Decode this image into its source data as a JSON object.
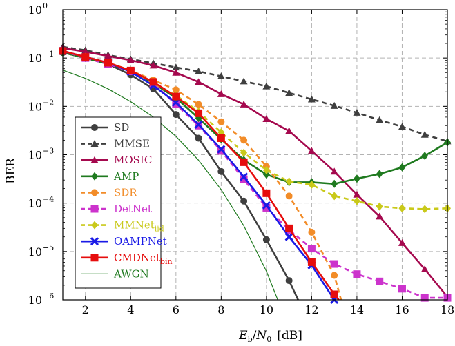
{
  "chart_data": {
    "type": "line",
    "title": "",
    "xlabel": "E_b/N_0 [dB]",
    "xlabel_parts": {
      "e": "E",
      "b": "b",
      "slash": "/",
      "n": "N",
      "zero": "0",
      "unit": "[dB]"
    },
    "ylabel": "BER",
    "xlim": [
      1,
      18
    ],
    "ylim": [
      1e-06,
      1
    ],
    "yscale": "log",
    "grid": true,
    "legend_position": "lower-left",
    "x_ticks": [
      2,
      4,
      6,
      8,
      10,
      12,
      14,
      16,
      18
    ],
    "x_tick_labels": [
      "2",
      "4",
      "6",
      "8",
      "10",
      "12",
      "14",
      "16",
      "18"
    ],
    "y_ticks": [
      0,
      -1,
      -2,
      -3,
      -4,
      -5,
      -6
    ],
    "y_tick_labels": [
      {
        "base": "10",
        "exp": "0"
      },
      {
        "base": "10",
        "exp": "−1"
      },
      {
        "base": "10",
        "exp": "−2"
      },
      {
        "base": "10",
        "exp": "−3"
      },
      {
        "base": "10",
        "exp": "−4"
      },
      {
        "base": "10",
        "exp": "−5"
      },
      {
        "base": "10",
        "exp": "−6"
      }
    ],
    "series": [
      {
        "name": "SD",
        "sub": "",
        "color": "#3f3f3f",
        "dash": "solid",
        "marker": "circle",
        "x": [
          1,
          2,
          3,
          4,
          5,
          6,
          7,
          8,
          9,
          10,
          11,
          11.4
        ],
        "y": [
          0.13,
          0.1,
          0.075,
          0.045,
          0.023,
          0.0068,
          0.0022,
          0.00045,
          0.00011,
          1.75e-05,
          2.5e-06,
          1e-06
        ]
      },
      {
        "name": "MMSE",
        "sub": "",
        "color": "#3f3f3f",
        "dash": "dashed",
        "marker": "triangle",
        "x": [
          1,
          2,
          3,
          4,
          5,
          6,
          7,
          8,
          9,
          10,
          11,
          12,
          13,
          14,
          15,
          16,
          17,
          18
        ],
        "y": [
          0.17,
          0.145,
          0.115,
          0.095,
          0.078,
          0.064,
          0.053,
          0.042,
          0.033,
          0.026,
          0.019,
          0.014,
          0.0103,
          0.0074,
          0.0052,
          0.0038,
          0.0026,
          0.0019
        ]
      },
      {
        "name": "MOSIC",
        "sub": "",
        "color": "#a5094e",
        "dash": "solid",
        "marker": "triangle",
        "x": [
          1,
          2,
          3,
          4,
          5,
          6,
          7,
          8,
          9,
          10,
          11,
          12,
          13,
          14,
          15,
          16,
          17,
          18
        ],
        "y": [
          0.16,
          0.135,
          0.11,
          0.09,
          0.07,
          0.05,
          0.032,
          0.018,
          0.011,
          0.0055,
          0.0031,
          0.0012,
          0.00045,
          0.00015,
          5.3e-05,
          1.5e-05,
          4.3e-06,
          1.15e-06
        ]
      },
      {
        "name": "AMP",
        "sub": "",
        "color": "#1f7a1f",
        "dash": "solid",
        "marker": "diamond",
        "x": [
          1,
          2,
          3,
          4,
          5,
          6,
          7,
          8,
          9,
          10,
          11,
          12,
          13,
          14,
          15,
          16,
          17,
          18
        ],
        "y": [
          0.13,
          0.1,
          0.075,
          0.055,
          0.03,
          0.015,
          0.0057,
          0.0021,
          0.00078,
          0.00039,
          0.00027,
          0.00027,
          0.00025,
          0.00032,
          0.0004,
          0.00055,
          0.00095,
          0.0018
        ]
      },
      {
        "name": "SDR",
        "sub": "",
        "color": "#f28c28",
        "dash": "dashed",
        "marker": "circle",
        "x": [
          1,
          2,
          3,
          4,
          5,
          6,
          7,
          8,
          9,
          10,
          11,
          12,
          13,
          13.3
        ],
        "y": [
          0.14,
          0.105,
          0.08,
          0.055,
          0.035,
          0.022,
          0.011,
          0.0048,
          0.002,
          0.00057,
          0.00014,
          2.5e-05,
          3.2e-06,
          1e-06
        ]
      },
      {
        "name": "DetNet",
        "sub": "",
        "color": "#cc33cc",
        "dash": "dashed",
        "marker": "square",
        "x": [
          1,
          2,
          3,
          4,
          5,
          6,
          7,
          8,
          9,
          10,
          11,
          12,
          13,
          14,
          15,
          16,
          17,
          18
        ],
        "y": [
          0.14,
          0.1,
          0.075,
          0.053,
          0.03,
          0.011,
          0.004,
          0.0012,
          0.00031,
          8e-05,
          2.8e-05,
          1.15e-05,
          5.5e-06,
          3.4e-06,
          2.4e-06,
          1.7e-06,
          1.1e-06,
          1.1e-06
        ]
      },
      {
        "name": "MMNet",
        "sub": "iid",
        "color": "#c9c91a",
        "dash": "dashed",
        "marker": "diamond",
        "x": [
          1,
          2,
          3,
          4,
          5,
          6,
          7,
          8,
          9,
          10,
          11,
          12,
          13,
          14,
          15,
          16,
          17,
          18
        ],
        "y": [
          0.14,
          0.105,
          0.08,
          0.055,
          0.03,
          0.017,
          0.0078,
          0.0029,
          0.0011,
          0.00048,
          0.00028,
          0.00024,
          0.00014,
          0.00011,
          8.5e-05,
          7.8e-05,
          7.5e-05,
          7.8e-05
        ]
      },
      {
        "name": "OAMPNet",
        "sub": "",
        "color": "#1a1ae6",
        "dash": "solid",
        "marker": "x",
        "x": [
          1,
          2,
          3,
          4,
          5,
          6,
          7,
          8,
          9,
          10,
          11,
          12,
          13
        ],
        "y": [
          0.14,
          0.105,
          0.08,
          0.052,
          0.027,
          0.012,
          0.0042,
          0.0013,
          0.00035,
          9e-05,
          2e-05,
          5.2e-06,
          1e-06
        ]
      },
      {
        "name": "CMDNet",
        "sub": "bin",
        "color": "#e60d0d",
        "dash": "solid",
        "marker": "square",
        "x": [
          1,
          2,
          3,
          4,
          5,
          6,
          7,
          8,
          9,
          10,
          11,
          12,
          13,
          13.2
        ],
        "y": [
          0.14,
          0.105,
          0.08,
          0.055,
          0.032,
          0.016,
          0.0072,
          0.0022,
          0.0007,
          0.00016,
          3e-05,
          6e-06,
          1.3e-06,
          1e-06
        ]
      },
      {
        "name": "AWGN",
        "sub": "",
        "color": "#1f7a1f",
        "dash": "thin",
        "marker": "none",
        "x": [
          1,
          2,
          3,
          4,
          5,
          6,
          7,
          8,
          9,
          10,
          10.5
        ],
        "y": [
          0.056,
          0.038,
          0.023,
          0.0125,
          0.006,
          0.0024,
          0.00077,
          0.00019,
          3.4e-05,
          3.9e-06,
          1e-06
        ]
      }
    ]
  }
}
